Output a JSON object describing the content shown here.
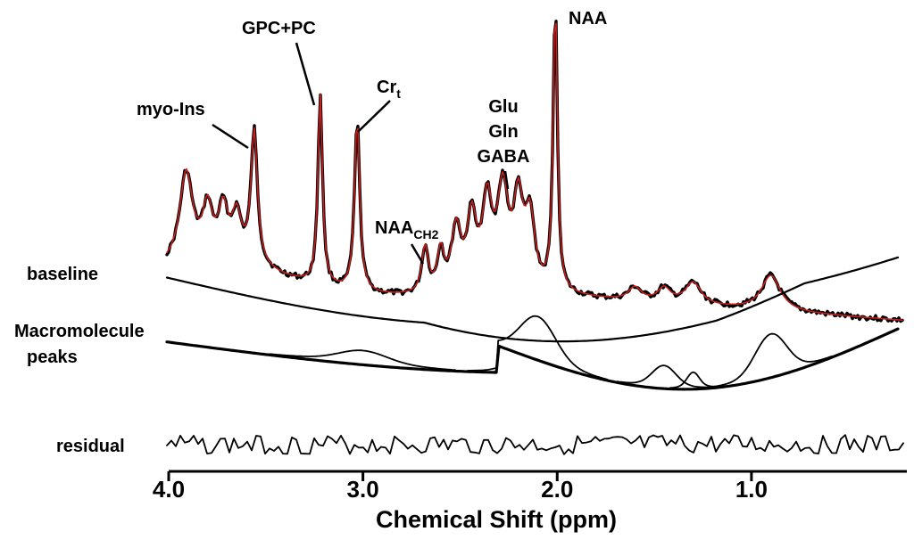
{
  "chart_data": {
    "type": "line",
    "x_axis": {
      "label": "Chemical Shift (ppm)",
      "range": [
        4.0,
        0.2
      ],
      "reversed": true,
      "ticks": [
        {
          "value": 4.0,
          "label": "4.0"
        },
        {
          "value": 3.0,
          "label": "3.0"
        },
        {
          "value": 2.0,
          "label": "2.0"
        },
        {
          "value": 1.0,
          "label": "1.0"
        }
      ]
    },
    "grid": false,
    "colors": {
      "data": "#000000",
      "fit": "#c81e1e"
    },
    "peak_labels": [
      {
        "text": "myo-Ins",
        "ppm": 3.56
      },
      {
        "text": "GPC+PC",
        "ppm": 3.22
      },
      {
        "text": "Cr",
        "sub": "t",
        "ppm": 3.03
      },
      {
        "text": "NAA",
        "sub": "CH2",
        "ppm": 2.68
      },
      {
        "lines": [
          "Glu",
          "Gln",
          "GABA"
        ],
        "ppm": 2.28
      },
      {
        "text": "NAA",
        "ppm": 2.01
      }
    ],
    "trace_labels": {
      "baseline": "baseline",
      "macromolecule": [
        "Macromolecule",
        "peaks"
      ],
      "residual": "residual"
    },
    "spectrum_peaks": [
      {
        "ppm": 3.91,
        "height": 0.47
      },
      {
        "ppm": 3.56,
        "height": 0.63
      },
      {
        "ppm": 3.22,
        "height": 0.91
      },
      {
        "ppm": 3.03,
        "height": 0.84
      },
      {
        "ppm": 2.68,
        "height": 0.22
      },
      {
        "ppm": 2.28,
        "height": 0.47
      },
      {
        "ppm": 2.01,
        "height": 1.0
      },
      {
        "ppm": 1.25,
        "height": 0.17
      },
      {
        "ppm": 0.9,
        "height": 0.3
      }
    ],
    "macromolecule_peaks_ppm": [
      3.0,
      2.1,
      1.45,
      1.3,
      0.9
    ]
  }
}
